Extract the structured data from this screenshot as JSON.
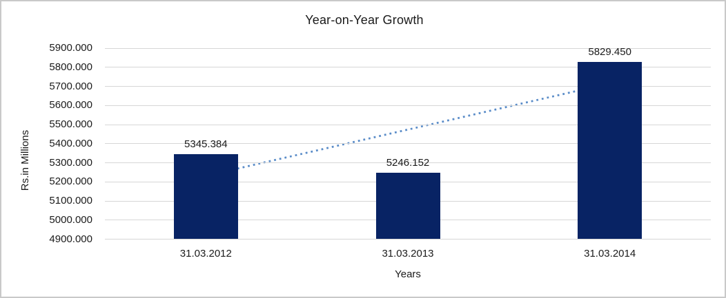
{
  "window": {
    "background_color": "#FFFFFF",
    "border_color": "#C9C9C9"
  },
  "chart_data": {
    "type": "bar",
    "title": "Year-on-Year Growth",
    "xlabel": "Years",
    "ylabel": "Rs.in Millions",
    "categories": [
      "31.03.2012",
      "31.03.2013",
      "31.03.2014"
    ],
    "values": [
      5345.384,
      5246.152,
      5829.45
    ],
    "data_labels": [
      "5345.384",
      "5246.152",
      "5829.450"
    ],
    "series_name": "Rs.in Millions",
    "ylim": [
      4900,
      5900
    ],
    "ytick_step": 100,
    "yticks": [
      "5900.000",
      "5800.000",
      "5700.000",
      "5600.000",
      "5500.000",
      "5400.000",
      "5300.000",
      "5200.000",
      "5100.000",
      "5000.000",
      "4900.000"
    ],
    "grid": true,
    "legend_position": "none",
    "bar_color": "#082364",
    "gridline_color": "#D6D6D6",
    "text_color": "#1A1A1A",
    "trendline": {
      "type": "linear",
      "style": "dotted",
      "color": "#5A8CC8",
      "from_category_index": 0,
      "to_category_index": 2,
      "y_start": 5231.63,
      "y_end": 5715.7
    }
  }
}
